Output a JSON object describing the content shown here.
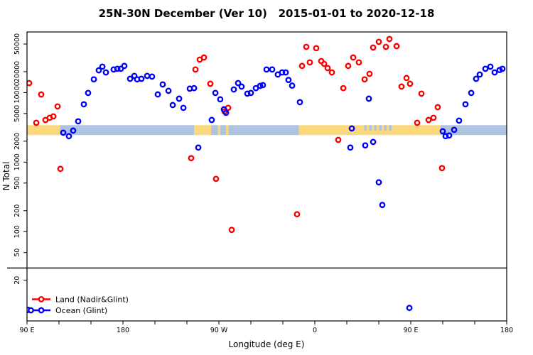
{
  "figure": {
    "title": "25N-30N December (Ver 10)   2015-01-01 to 2020-12-18"
  },
  "chart_data": {
    "type": "scatter",
    "title": "25N-30N December (Ver 10)   2015-01-01 to 2020-12-18",
    "xlabel": "Longitude (deg E)",
    "ylabel": "N Total",
    "x_axis": {
      "note": "longitude unwrapped eastward from 90E; axis spans 450 degrees (90E to 180 second crossing)",
      "range_deg": [
        90,
        540
      ],
      "minor_tick_step_deg": 30,
      "major_ticks": [
        {
          "deg": 90,
          "label": "90 E"
        },
        {
          "deg": 180,
          "label": "180"
        },
        {
          "deg": 270,
          "label": "90 W"
        },
        {
          "deg": 360,
          "label": "0"
        },
        {
          "deg": 450,
          "label": "90 E"
        },
        {
          "deg": 540,
          "label": "180"
        }
      ]
    },
    "y_axis": {
      "scale": "log10",
      "range": [
        5.2,
        74500
      ],
      "ticks": [
        50000,
        20000,
        10000,
        5000,
        2000,
        1000,
        500,
        200,
        100,
        50,
        20
      ]
    },
    "threshold_line": {
      "n": 30,
      "color": "#333333"
    },
    "land_ocean_band": {
      "n_top": 3400,
      "n_bottom": 2450,
      "land_color": "#FAD97E",
      "ocean_color": "#AEC3DF",
      "segments": [
        {
          "from_deg": 90,
          "to_deg": 121,
          "type": "land"
        },
        {
          "from_deg": 121,
          "to_deg": 246.7,
          "type": "ocean"
        },
        {
          "from_deg": 246.7,
          "to_deg": 262.7,
          "type": "land"
        },
        {
          "from_deg": 262.7,
          "to_deg": 269,
          "type": "ocean"
        },
        {
          "from_deg": 269,
          "to_deg": 271.3,
          "type": "land"
        },
        {
          "from_deg": 271.3,
          "to_deg": 276.7,
          "type": "ocean"
        },
        {
          "from_deg": 276.7,
          "to_deg": 279,
          "type": "land"
        },
        {
          "from_deg": 279,
          "to_deg": 345,
          "type": "ocean"
        },
        {
          "from_deg": 345,
          "to_deg": 405,
          "type": "land"
        },
        {
          "from_deg": 405,
          "to_deg": 432,
          "type": "mixed"
        },
        {
          "from_deg": 432,
          "to_deg": 478,
          "type": "land"
        },
        {
          "from_deg": 478,
          "to_deg": 540,
          "type": "ocean"
        }
      ]
    },
    "series": [
      {
        "name": "Land (Nadir&Glint)",
        "color": "#FF0000",
        "points": [
          [
            92,
            13700
          ],
          [
            98.7,
            3680
          ],
          [
            103.3,
            9400
          ],
          [
            107.3,
            4040
          ],
          [
            111.3,
            4340
          ],
          [
            114.7,
            4550
          ],
          [
            118.7,
            6320
          ],
          [
            121.3,
            800
          ],
          [
            244,
            1140
          ],
          [
            248,
            21500
          ],
          [
            252,
            29800
          ],
          [
            256,
            32000
          ],
          [
            262,
            13400
          ],
          [
            267.3,
            575
          ],
          [
            275.3,
            5370
          ],
          [
            278.7,
            6040
          ],
          [
            282,
            106
          ],
          [
            343.3,
            178
          ],
          [
            348,
            24200
          ],
          [
            352,
            45500
          ],
          [
            355.3,
            27200
          ],
          [
            361.3,
            43500
          ],
          [
            366,
            28400
          ],
          [
            368.7,
            25900
          ],
          [
            372,
            22500
          ],
          [
            376,
            19500
          ],
          [
            382,
            2090
          ],
          [
            386.7,
            11600
          ],
          [
            391.3,
            24200
          ],
          [
            396,
            32000
          ],
          [
            401.3,
            27200
          ],
          [
            406.7,
            15500
          ],
          [
            411.3,
            18600
          ],
          [
            414.7,
            44500
          ],
          [
            420,
            53700
          ],
          [
            426.7,
            45500
          ],
          [
            430,
            59000
          ],
          [
            436.7,
            46600
          ],
          [
            441.3,
            12200
          ],
          [
            446,
            16200
          ],
          [
            449.3,
            13400
          ],
          [
            456,
            3680
          ],
          [
            460,
            9660
          ],
          [
            466.7,
            4040
          ],
          [
            471.3,
            4340
          ],
          [
            475.3,
            6180
          ],
          [
            479.3,
            820
          ]
        ]
      },
      {
        "name": "Ocean (Glint)",
        "color": "#0000FF",
        "points": [
          [
            91,
            7.5
          ],
          [
            124,
            2650
          ],
          [
            129.3,
            2360
          ],
          [
            133.3,
            2840
          ],
          [
            138,
            3860
          ],
          [
            143.3,
            6790
          ],
          [
            147.3,
            9890
          ],
          [
            152.7,
            15500
          ],
          [
            157.3,
            20900
          ],
          [
            160.7,
            23600
          ],
          [
            164,
            19500
          ],
          [
            171.3,
            21500
          ],
          [
            174.7,
            22000
          ],
          [
            178,
            22000
          ],
          [
            181.3,
            24200
          ],
          [
            186.7,
            15800
          ],
          [
            190.7,
            17400
          ],
          [
            193.3,
            15500
          ],
          [
            197.3,
            15800
          ],
          [
            202.7,
            17400
          ],
          [
            207.3,
            17000
          ],
          [
            212.7,
            9420
          ],
          [
            217.3,
            13100
          ],
          [
            222.7,
            10600
          ],
          [
            226.7,
            6620
          ],
          [
            232.7,
            8180
          ],
          [
            236.7,
            6040
          ],
          [
            242.7,
            11400
          ],
          [
            246.7,
            11600
          ],
          [
            250.7,
            1620
          ],
          [
            263.3,
            4040
          ],
          [
            266.7,
            9890
          ],
          [
            271.3,
            8000
          ],
          [
            274.7,
            5750
          ],
          [
            276.7,
            5120
          ],
          [
            284,
            11100
          ],
          [
            288,
            13700
          ],
          [
            291.3,
            12200
          ],
          [
            296.7,
            9660
          ],
          [
            300,
            9890
          ],
          [
            304.7,
            11600
          ],
          [
            308.7,
            12500
          ],
          [
            311.3,
            12800
          ],
          [
            314.7,
            21500
          ],
          [
            320,
            21500
          ],
          [
            325.3,
            18200
          ],
          [
            329.3,
            19500
          ],
          [
            332.7,
            19500
          ],
          [
            335.3,
            15200
          ],
          [
            338.7,
            12600
          ],
          [
            346,
            7280
          ],
          [
            393.3,
            1620
          ],
          [
            394.7,
            3050
          ],
          [
            407.3,
            1740
          ],
          [
            410.7,
            8180
          ],
          [
            414.7,
            1950
          ],
          [
            420,
            512
          ],
          [
            423.3,
            242
          ],
          [
            448.7,
            8
          ],
          [
            480,
            2780
          ],
          [
            482.7,
            2360
          ],
          [
            486,
            2420
          ],
          [
            490.7,
            2910
          ],
          [
            495.3,
            3950
          ],
          [
            501.3,
            6790
          ],
          [
            506.7,
            9890
          ],
          [
            511.3,
            15800
          ],
          [
            514.7,
            18200
          ],
          [
            520,
            22000
          ],
          [
            524.7,
            23600
          ],
          [
            528.7,
            19500
          ],
          [
            533.3,
            21100
          ],
          [
            536,
            22000
          ]
        ]
      }
    ],
    "legend": {
      "position": "bottom-left",
      "items": [
        "Land (Nadir&Glint)",
        "Ocean (Glint)"
      ]
    }
  }
}
